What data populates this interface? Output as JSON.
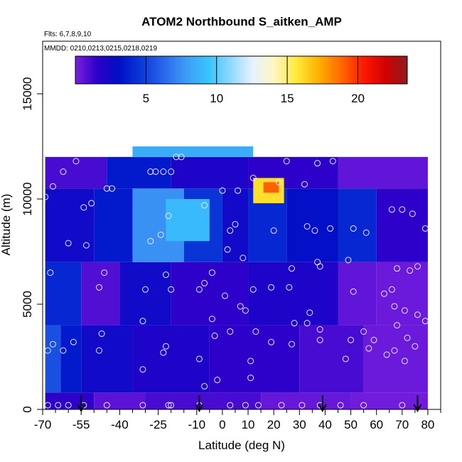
{
  "chart_data": {
    "type": "heatmap",
    "title": "ATOM2 Northbound S_aitken_AMP",
    "subtitle_flights": "Flts: 6,7,8,9,10",
    "subtitle_dates": "MMDD: 0210,0213,0215,0218,0219",
    "xlabel": "Latitude (deg N)",
    "ylabel": "Altitude (m)",
    "xlim": [
      -70,
      85
    ],
    "ylim": [
      0,
      17500
    ],
    "xticks": [
      -70,
      -55,
      -40,
      -25,
      -10,
      0,
      10,
      20,
      30,
      40,
      50,
      60,
      70,
      80
    ],
    "xtick_labels": [
      "-70",
      "-55",
      "-40",
      "-25",
      "-10",
      "0",
      "10",
      "20",
      "30",
      "40",
      "50",
      "60",
      "70",
      "80"
    ],
    "xminor": [
      -65,
      -60,
      -50,
      -45,
      -35,
      -30,
      -20,
      -15,
      -5,
      5,
      15,
      25,
      35,
      45,
      55,
      65,
      75,
      85
    ],
    "yticks": [
      0,
      5000,
      10000,
      15000
    ],
    "ytick_labels": [
      "0",
      "5000",
      "10000",
      "15000"
    ],
    "colorbar": {
      "range": [
        0,
        23.5
      ],
      "ticks": [
        5,
        10,
        15,
        20
      ],
      "tick_labels": [
        "5",
        "10",
        "15",
        "20"
      ],
      "colors": [
        "#7b1fe0",
        "#2a00c8",
        "#0010c8",
        "#0a3ad8",
        "#2a66ec",
        "#3d9cf6",
        "#37c4ff",
        "#8ed8ff",
        "#e6f2ff",
        "#fff6c0",
        "#ffea3a",
        "#ffb000",
        "#ff6a00",
        "#ff1a00",
        "#d40000",
        "#8c1c1c"
      ]
    },
    "arrows_lat": [
      -55,
      -9,
      39,
      76
    ],
    "cells": [
      {
        "lat0": -69,
        "lat1": -50,
        "alt0": 0,
        "alt1": 800,
        "v": 1.5
      },
      {
        "lat0": -50,
        "lat1": -30,
        "alt0": 0,
        "alt1": 800,
        "v": 0.6
      },
      {
        "lat0": -30,
        "lat1": 15,
        "alt0": 0,
        "alt1": 800,
        "v": 1.0
      },
      {
        "lat0": 15,
        "lat1": 50,
        "alt0": 0,
        "alt1": 800,
        "v": 0.4
      },
      {
        "lat0": 50,
        "lat1": 80,
        "alt0": 0,
        "alt1": 800,
        "v": 0.2
      },
      {
        "lat0": -69,
        "lat1": -63,
        "alt0": 800,
        "alt1": 4000,
        "v": 5.5
      },
      {
        "lat0": -63,
        "lat1": -55,
        "alt0": 800,
        "alt1": 4000,
        "v": 3.5
      },
      {
        "lat0": -55,
        "lat1": -35,
        "alt0": 800,
        "alt1": 4000,
        "v": 2.5
      },
      {
        "lat0": -35,
        "lat1": -5,
        "alt0": 800,
        "alt1": 4000,
        "v": 2.0
      },
      {
        "lat0": -5,
        "lat1": 30,
        "alt0": 800,
        "alt1": 4000,
        "v": 1.5
      },
      {
        "lat0": 30,
        "lat1": 55,
        "alt0": 800,
        "alt1": 4000,
        "v": 1.0
      },
      {
        "lat0": 55,
        "lat1": 80,
        "alt0": 800,
        "alt1": 4000,
        "v": 0.3
      },
      {
        "lat0": -69,
        "lat1": -55,
        "alt0": 4000,
        "alt1": 7000,
        "v": 4.0
      },
      {
        "lat0": -55,
        "lat1": -40,
        "alt0": 4000,
        "alt1": 7000,
        "v": 0.8
      },
      {
        "lat0": -40,
        "lat1": -20,
        "alt0": 4000,
        "alt1": 7000,
        "v": 2.5
      },
      {
        "lat0": -20,
        "lat1": 10,
        "alt0": 4000,
        "alt1": 7000,
        "v": 1.5
      },
      {
        "lat0": 10,
        "lat1": 45,
        "alt0": 4000,
        "alt1": 7000,
        "v": 2.0
      },
      {
        "lat0": 45,
        "lat1": 60,
        "alt0": 4000,
        "alt1": 7000,
        "v": 0.5
      },
      {
        "lat0": 60,
        "lat1": 80,
        "alt0": 4000,
        "alt1": 7000,
        "v": 0.3
      },
      {
        "lat0": -69,
        "lat1": -50,
        "alt0": 7000,
        "alt1": 10500,
        "v": 2.5
      },
      {
        "lat0": -50,
        "lat1": -35,
        "alt0": 7000,
        "alt1": 10500,
        "v": 3.5
      },
      {
        "lat0": -35,
        "lat1": -15,
        "alt0": 7000,
        "alt1": 10500,
        "v": 7.5
      },
      {
        "lat0": -15,
        "lat1": 0,
        "alt0": 7000,
        "alt1": 10500,
        "v": 4.5
      },
      {
        "lat0": 0,
        "lat1": 10,
        "alt0": 7000,
        "alt1": 10500,
        "v": 2.5
      },
      {
        "lat0": 10,
        "lat1": 25,
        "alt0": 7000,
        "alt1": 10500,
        "v": 4.0
      },
      {
        "lat0": 25,
        "lat1": 45,
        "alt0": 7000,
        "alt1": 10500,
        "v": 3.0
      },
      {
        "lat0": 45,
        "lat1": 60,
        "alt0": 7000,
        "alt1": 10500,
        "v": 4.0
      },
      {
        "lat0": 60,
        "lat1": 80,
        "alt0": 7000,
        "alt1": 10500,
        "v": 1.5
      },
      {
        "lat0": -69,
        "lat1": -45,
        "alt0": 10500,
        "alt1": 12000,
        "v": 1.0
      },
      {
        "lat0": -45,
        "lat1": -20,
        "alt0": 10500,
        "alt1": 12000,
        "v": 3.5
      },
      {
        "lat0": -20,
        "lat1": 10,
        "alt0": 10500,
        "alt1": 12000,
        "v": 2.0
      },
      {
        "lat0": 10,
        "lat1": 45,
        "alt0": 10500,
        "alt1": 12000,
        "v": 1.5
      },
      {
        "lat0": 45,
        "lat1": 80,
        "alt0": 10500,
        "alt1": 12000,
        "v": 0.5
      },
      {
        "lat0": -35,
        "lat1": 12,
        "alt0": 12000,
        "alt1": 12500,
        "v": 8.5
      },
      {
        "lat0": -22,
        "lat1": -5,
        "alt0": 8000,
        "alt1": 10000,
        "v": 9.0
      },
      {
        "lat0": 12,
        "lat1": 24,
        "alt0": 9800,
        "alt1": 11000,
        "v": 16.0
      },
      {
        "lat0": 16,
        "lat1": 22,
        "alt0": 10300,
        "alt1": 10800,
        "v": 19.0
      }
    ],
    "points": [
      [
        -68,
        200
      ],
      [
        -64,
        200
      ],
      [
        -60,
        200
      ],
      [
        -54,
        200
      ],
      [
        -45,
        200
      ],
      [
        -31,
        200
      ],
      [
        -21,
        200
      ],
      [
        -20,
        200
      ],
      [
        -9,
        200
      ],
      [
        3,
        200
      ],
      [
        9,
        200
      ],
      [
        14,
        200
      ],
      [
        23,
        200
      ],
      [
        31,
        200
      ],
      [
        38,
        200
      ],
      [
        46,
        200
      ],
      [
        55,
        200
      ],
      [
        70,
        200
      ],
      [
        -7,
        1100
      ],
      [
        -2,
        1400
      ],
      [
        11,
        1500
      ],
      [
        -31,
        1900
      ],
      [
        -68,
        2800
      ],
      [
        -62,
        2800
      ],
      [
        -48,
        2800
      ],
      [
        -23,
        2700
      ],
      [
        -22,
        3000
      ],
      [
        -9,
        2400
      ],
      [
        11,
        2300
      ],
      [
        19,
        3200
      ],
      [
        27,
        3100
      ],
      [
        48,
        2400
      ],
      [
        57,
        2900
      ],
      [
        64,
        2600
      ],
      [
        67,
        2800
      ],
      [
        71,
        2300
      ],
      [
        75,
        3000
      ],
      [
        -66,
        3100
      ],
      [
        -58,
        3200
      ],
      [
        -47,
        3600
      ],
      [
        -31,
        4200
      ],
      [
        -4,
        4300
      ],
      [
        -3,
        3500
      ],
      [
        3,
        3700
      ],
      [
        13,
        3700
      ],
      [
        28,
        4100
      ],
      [
        33,
        4100
      ],
      [
        38,
        3300
      ],
      [
        38,
        3800
      ],
      [
        50,
        3300
      ],
      [
        55,
        3700
      ],
      [
        59,
        3300
      ],
      [
        68,
        4000
      ],
      [
        72,
        3400
      ],
      [
        76,
        4500
      ],
      [
        79,
        4200
      ],
      [
        -48,
        5800
      ],
      [
        -30,
        5700
      ],
      [
        -20,
        5700
      ],
      [
        -9,
        5700
      ],
      [
        -7,
        6000
      ],
      [
        1,
        5400
      ],
      [
        7,
        4900
      ],
      [
        9,
        4700
      ],
      [
        12,
        5700
      ],
      [
        19,
        5800
      ],
      [
        26,
        5800
      ],
      [
        34,
        4600
      ],
      [
        51,
        5600
      ],
      [
        63,
        5500
      ],
      [
        66,
        5700
      ],
      [
        67,
        4900
      ],
      [
        71,
        4700
      ],
      [
        -67,
        6500
      ],
      [
        -46,
        6500
      ],
      [
        -22,
        6400
      ],
      [
        -4,
        6500
      ],
      [
        8,
        7200
      ],
      [
        27,
        6700
      ],
      [
        37,
        7000
      ],
      [
        38,
        6800
      ],
      [
        49,
        7100
      ],
      [
        68,
        6700
      ],
      [
        73,
        6600
      ],
      [
        76,
        6800
      ],
      [
        -60,
        7900
      ],
      [
        -53,
        7800
      ],
      [
        -28,
        8000
      ],
      [
        -24,
        8300
      ],
      [
        2,
        7600
      ],
      [
        20,
        8500
      ],
      [
        33,
        8700
      ],
      [
        36,
        8500
      ],
      [
        42,
        8600
      ],
      [
        51,
        8600
      ],
      [
        56,
        8400
      ],
      [
        79,
        8600
      ],
      [
        -54,
        9600
      ],
      [
        -51,
        9800
      ],
      [
        -21,
        9200
      ],
      [
        -7,
        9700
      ],
      [
        3,
        8500
      ],
      [
        5,
        8800
      ],
      [
        -69,
        10100
      ],
      [
        -66,
        10600
      ],
      [
        -45,
        10500
      ],
      [
        -43,
        10500
      ],
      [
        0,
        10400
      ],
      [
        6,
        10400
      ],
      [
        12,
        11000
      ],
      [
        22,
        10800
      ],
      [
        32,
        10700
      ],
      [
        66,
        9500
      ],
      [
        70,
        9500
      ],
      [
        74,
        9300
      ],
      [
        -62,
        11300
      ],
      [
        -57,
        11800
      ],
      [
        -28,
        11300
      ],
      [
        -26,
        11300
      ],
      [
        -23,
        11300
      ],
      [
        -20,
        11300
      ],
      [
        -18,
        12000
      ],
      [
        -16,
        12000
      ],
      [
        25,
        11800
      ],
      [
        37,
        11700
      ],
      [
        43,
        11800
      ]
    ]
  }
}
